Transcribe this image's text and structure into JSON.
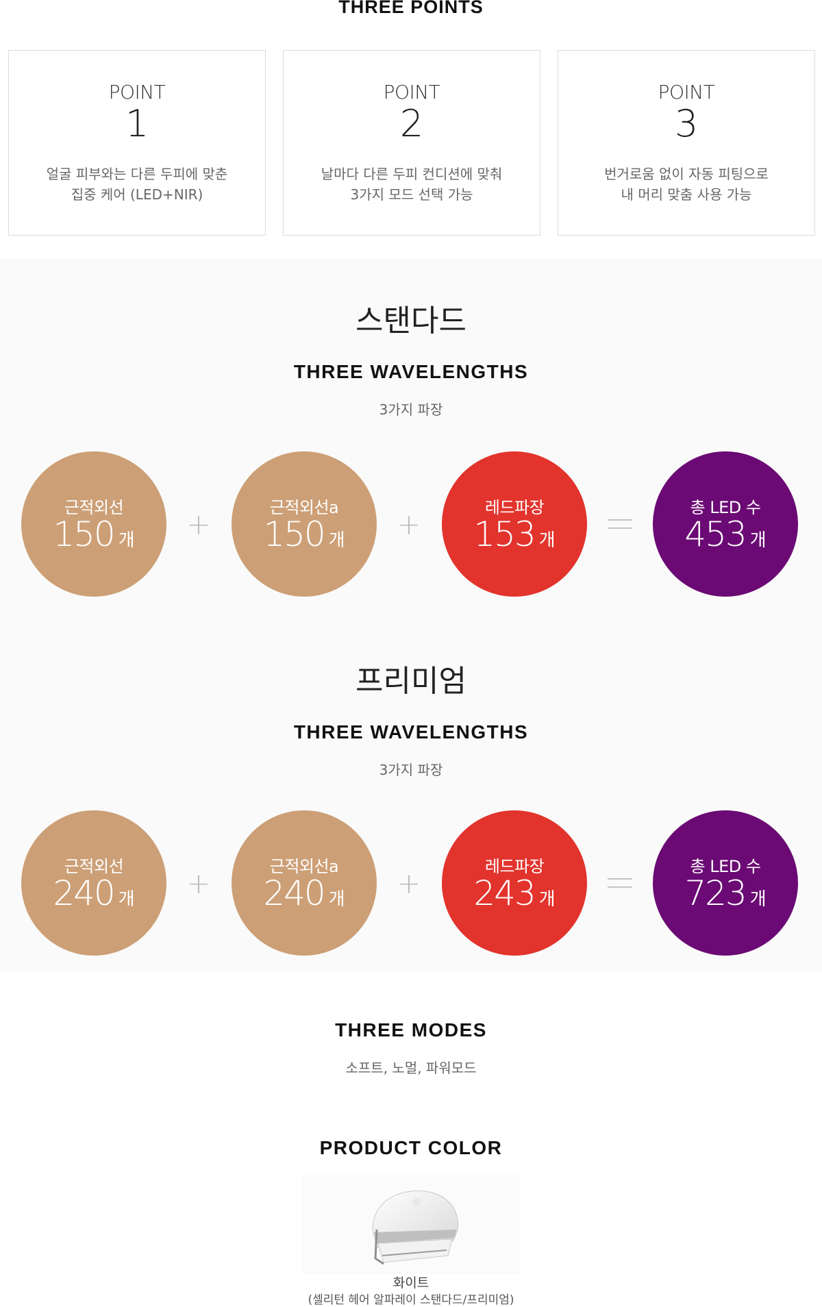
{
  "header": {
    "title": "THREE POINTS"
  },
  "points": [
    {
      "label": "POINT",
      "number": "1",
      "line1": "얼굴 피부와는 다른 두피에 맞춘",
      "line2": "집중 케어 (LED+NIR)"
    },
    {
      "label": "POINT",
      "number": "2",
      "line1": "날마다 다른 두피 컨디션에 맞춰",
      "line2": "3가지 모드 선택 가능"
    },
    {
      "label": "POINT",
      "number": "3",
      "line1": "번거로움 없이 자동 피팅으로",
      "line2": "내 머리 맞춤 사용 가능"
    }
  ],
  "standard": {
    "title": "스탠다드",
    "heading": "THREE WAVELENGTHS",
    "caption": "3가지 파장",
    "circles": [
      {
        "label": "근적외선",
        "value": "150",
        "unit": "개"
      },
      {
        "label": "근적외선a",
        "value": "150",
        "unit": "개"
      },
      {
        "label": "레드파장",
        "value": "153",
        "unit": "개"
      },
      {
        "label": "총 LED 수",
        "value": "453",
        "unit": "개"
      }
    ],
    "ops": [
      "+",
      "+",
      "="
    ]
  },
  "premium": {
    "title": "프리미엄",
    "heading": "THREE WAVELENGTHS",
    "caption": "3가지 파장",
    "circles": [
      {
        "label": "근적외선",
        "value": "240",
        "unit": "개"
      },
      {
        "label": "근적외선a",
        "value": "240",
        "unit": "개"
      },
      {
        "label": "레드파장",
        "value": "243",
        "unit": "개"
      },
      {
        "label": "총 LED 수",
        "value": "723",
        "unit": "개"
      }
    ],
    "ops": [
      "+",
      "+",
      "="
    ]
  },
  "modes": {
    "heading": "THREE MODES",
    "caption": "소프트, 노멀, 파워모드"
  },
  "product_color": {
    "heading": "PRODUCT COLOR",
    "color_name": "화이트",
    "note": "(셀리턴 헤어 알파레이 스탠다드/프리미엄)"
  },
  "colors": {
    "tan": "#cc9f76",
    "red": "#e2332c",
    "purple": "#6b0a74"
  }
}
